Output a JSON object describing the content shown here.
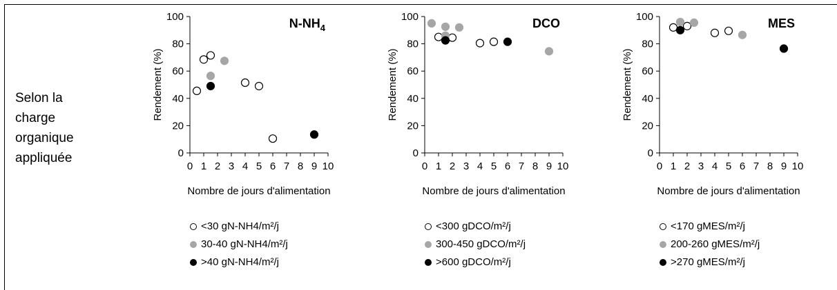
{
  "row_label": [
    "Selon la",
    "charge",
    "organique",
    "appliquée"
  ],
  "colors": {
    "open": "#ffffff",
    "gray": "#a6a6a6",
    "black": "#000000"
  },
  "chart_data": [
    {
      "type": "scatter",
      "title": "N-NH",
      "title_sub": "4",
      "xlabel": "Nombre de jours d'alimentation",
      "ylabel": "Rendement (%)",
      "xlim": [
        0,
        10
      ],
      "ylim": [
        0,
        100
      ],
      "xticks": [
        "0",
        "1",
        "2",
        "3",
        "4",
        "5",
        "6",
        "7",
        "8",
        "9",
        "10"
      ],
      "yticks": [
        "0",
        "20",
        "40",
        "60",
        "80",
        "100"
      ],
      "grid": false,
      "series": [
        {
          "name": "<30 gN-NH4/m²/j",
          "style": "open",
          "points": [
            [
              0.5,
              45.5
            ],
            [
              1,
              68.5
            ],
            [
              1.5,
              71.5
            ],
            [
              4,
              51.5
            ],
            [
              5,
              49
            ],
            [
              6,
              10.5
            ]
          ]
        },
        {
          "name": "30-40 gN-NH4/m²/j",
          "style": "gray",
          "points": [
            [
              1.5,
              56.5
            ],
            [
              2.5,
              67.5
            ]
          ]
        },
        {
          "name": ">40 gN-NH4/m²/j",
          "style": "black",
          "points": [
            [
              1.5,
              49
            ],
            [
              9,
              13.5
            ]
          ]
        }
      ]
    },
    {
      "type": "scatter",
      "title": "DCO",
      "title_sub": "",
      "xlabel": "Nombre de jours d'alimentation",
      "ylabel": "Rendement (%)",
      "xlim": [
        0,
        10
      ],
      "ylim": [
        0,
        100
      ],
      "xticks": [
        "0",
        "1",
        "2",
        "3",
        "4",
        "5",
        "6",
        "7",
        "8",
        "9",
        "10"
      ],
      "yticks": [
        "0",
        "20",
        "40",
        "60",
        "80",
        "100"
      ],
      "grid": false,
      "series": [
        {
          "name": "<300 gDCO/m²/j",
          "style": "open",
          "points": [
            [
              1,
              85
            ],
            [
              2,
              84.5
            ],
            [
              4,
              80.5
            ],
            [
              5,
              81.5
            ]
          ]
        },
        {
          "name": "300-450 gDCO/m²/j",
          "style": "gray",
          "points": [
            [
              0.5,
              95
            ],
            [
              1.5,
              92.5
            ],
            [
              2.5,
              92
            ],
            [
              1.5,
              86
            ],
            [
              9,
              74.5
            ]
          ]
        },
        {
          "name": ">600 gDCO/m²/j",
          "style": "black",
          "points": [
            [
              1.5,
              82.5
            ],
            [
              6,
              81.5
            ]
          ]
        }
      ]
    },
    {
      "type": "scatter",
      "title": "MES",
      "title_sub": "",
      "xlabel": "Nombre de jours d'alimentation",
      "ylabel": "Rendement (%)",
      "xlim": [
        0,
        10
      ],
      "ylim": [
        0,
        100
      ],
      "xticks": [
        "0",
        "1",
        "2",
        "3",
        "4",
        "5",
        "6",
        "7",
        "8",
        "9",
        "10"
      ],
      "yticks": [
        "0",
        "20",
        "40",
        "60",
        "80",
        "100"
      ],
      "grid": false,
      "series": [
        {
          "name": "<170 gMES/m²/j",
          "style": "open",
          "points": [
            [
              1,
              92
            ],
            [
              2,
              93
            ],
            [
              4,
              88
            ],
            [
              5,
              89.5
            ]
          ]
        },
        {
          "name": "200-260 gMES/m²/j",
          "style": "gray",
          "points": [
            [
              1.5,
              96
            ],
            [
              2.5,
              95.5
            ],
            [
              6,
              86.5
            ]
          ]
        },
        {
          "name": ">270 gMES/m²/j",
          "style": "black",
          "points": [
            [
              1.5,
              90
            ],
            [
              9,
              76.5
            ]
          ]
        }
      ]
    }
  ]
}
